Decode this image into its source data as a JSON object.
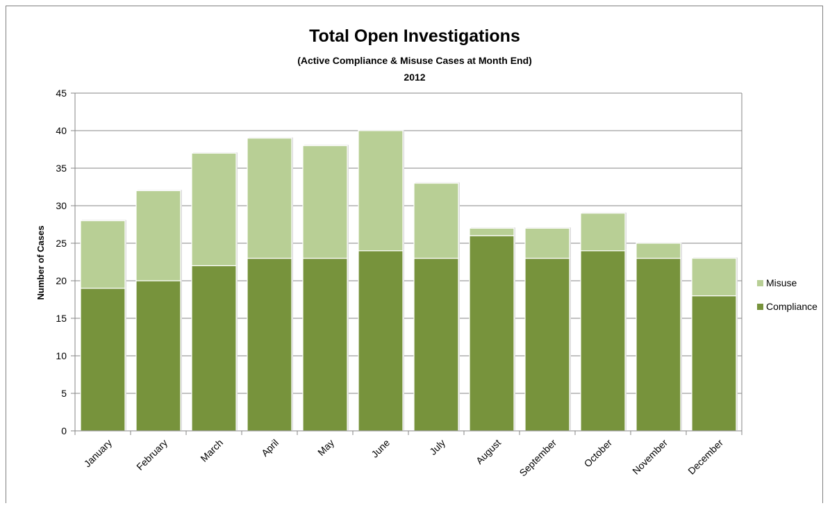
{
  "chart_data": {
    "type": "bar",
    "stacked": true,
    "title": "Total Open Investigations",
    "subtitle": "(Active  Compliance & Misuse Cases at Month End)",
    "subtitle2": "2012",
    "xlabel": "",
    "ylabel": "Number of Cases",
    "ylim": [
      0,
      45
    ],
    "yticks": [
      0,
      5,
      10,
      15,
      20,
      25,
      30,
      35,
      40,
      45
    ],
    "grid": true,
    "legend_position": "right",
    "categories": [
      "January",
      "February",
      "March",
      "April",
      "May",
      "June",
      "July",
      "August",
      "September",
      "October",
      "November",
      "December"
    ],
    "series": [
      {
        "name": "Compliance",
        "color": "#77933c",
        "values": [
          19,
          20,
          22,
          23,
          23,
          24,
          23,
          26,
          23,
          24,
          23,
          18
        ]
      },
      {
        "name": "Misuse",
        "color": "#b8cf95",
        "values": [
          9,
          12,
          15,
          16,
          15,
          16,
          10,
          1,
          4,
          5,
          2,
          5
        ]
      }
    ],
    "legend": [
      {
        "name": "Misuse",
        "color": "#b8cf95"
      },
      {
        "name": "Compliance",
        "color": "#77933c"
      }
    ]
  }
}
